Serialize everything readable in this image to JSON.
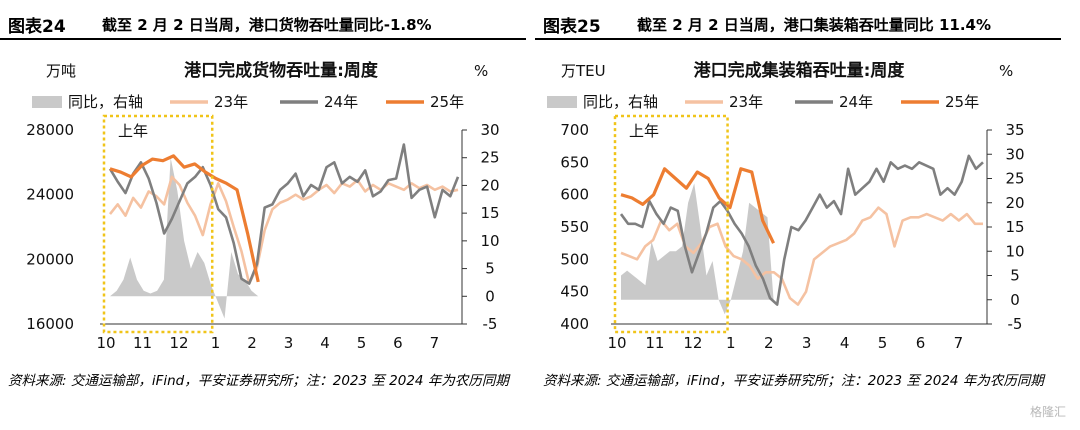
{
  "watermark": "格隆汇",
  "colors": {
    "ratio": "#c9c9c9",
    "y23": "#f5c2a2",
    "y24": "#7f7f7f",
    "y25": "#ed7d31",
    "box": "#f0c419"
  },
  "charts": [
    {
      "fig_no": "图表24",
      "fig_title": "截至 2 月 2 日当周，港口货物吞吐量同比-1.8%",
      "note": "资料来源: 交通运输部，iFind，平安证券研究所；注：2023 至 2024 年为农历同期",
      "chart_data": {
        "type": "line",
        "title": "港口完成货物吞吐量:周度",
        "left_unit": "万吨",
        "right_unit": "%",
        "left_ylim": [
          16000,
          28000
        ],
        "left_ticks": [
          "28000",
          "24000",
          "20000",
          "16000"
        ],
        "right_ylim": [
          -5,
          30
        ],
        "right_ticks": [
          "30",
          "25",
          "20",
          "15",
          "10",
          "5",
          "0",
          "-5"
        ],
        "x_tick_labels": [
          "10",
          "11",
          "12",
          "1",
          "2",
          "3",
          "4",
          "5",
          "6",
          "7"
        ],
        "box_label": "上年",
        "legend": [
          "同比，右轴",
          "23年",
          "24年",
          "25年"
        ],
        "series": [
          {
            "name": "同比，右轴",
            "type": "area",
            "axis": "right",
            "values": [
              0,
              1,
              3,
              7,
              3,
              1,
              0.5,
              1,
              3,
              25,
              19,
              10,
              5,
              8,
              6,
              2,
              -1,
              -4,
              8,
              4,
              3,
              1,
              0
            ]
          },
          {
            "name": "23年",
            "type": "line",
            "axis": "left",
            "values": [
              22800,
              23400,
              22700,
              23800,
              23200,
              24200,
              23900,
              23400,
              25100,
              24600,
              23500,
              22700,
              21500,
              23400,
              24700,
              23600,
              22000,
              20500,
              18500,
              19500,
              21800,
              23100,
              23500,
              23700,
              24000,
              23700,
              23900,
              24300,
              24600,
              24100,
              24700,
              24500,
              24900,
              24200,
              24600,
              24300,
              24700,
              24500,
              24300,
              24700,
              24400,
              24600,
              24300,
              24500,
              24200,
              24300
            ]
          },
          {
            "name": "24年",
            "type": "line",
            "axis": "left",
            "values": [
              25600,
              24800,
              24100,
              25300,
              26000,
              25000,
              23500,
              21600,
              22500,
              23600,
              24700,
              25100,
              25700,
              24600,
              23100,
              22600,
              21000,
              18800,
              18500,
              19700,
              23200,
              23400,
              24300,
              24700,
              25300,
              23900,
              24600,
              24300,
              25700,
              26000,
              24700,
              25100,
              24800,
              25500,
              23900,
              24200,
              24900,
              25000,
              27100,
              23800,
              24300,
              24500,
              22600,
              24300,
              23900,
              25100
            ]
          },
          {
            "name": "25年",
            "type": "line",
            "axis": "left",
            "values": [
              25600,
              25400,
              25100,
              25800,
              26200,
              26100,
              26400,
              25700,
              25900,
              25400,
              25000,
              24700,
              24300,
              21600,
              18600
            ]
          }
        ]
      }
    },
    {
      "fig_no": "图表25",
      "fig_title": "截至 2 月 2 日当周，港口集装箱吞吐量同比 11.4%",
      "note": "资料来源: 交通运输部，iFind，平安证券研究所；注：2023 至 2024 年为农历同期",
      "chart_data": {
        "type": "line",
        "title": "港口完成集装箱吞吐量:周度",
        "left_unit": "万TEU",
        "right_unit": "%",
        "left_ylim": [
          400,
          700
        ],
        "left_ticks": [
          "700",
          "650",
          "600",
          "550",
          "500",
          "450",
          "400"
        ],
        "right_ylim": [
          -5,
          35
        ],
        "right_ticks": [
          "35",
          "30",
          "25",
          "20",
          "15",
          "10",
          "5",
          "0",
          "-5"
        ],
        "x_tick_labels": [
          "10",
          "11",
          "12",
          "1",
          "2",
          "3",
          "4",
          "5",
          "6",
          "7"
        ],
        "box_label": "上年",
        "legend": [
          "同比，右轴",
          "23年",
          "24年",
          "25年"
        ],
        "series": [
          {
            "name": "同比，右轴",
            "type": "area",
            "axis": "right",
            "values": [
              5,
              6,
              5,
              4,
              3,
              12,
              8,
              9,
              10,
              10,
              11,
              20,
              24,
              15,
              5,
              8,
              0,
              -3,
              0,
              5,
              10,
              20,
              19,
              18,
              17,
              0
            ]
          },
          {
            "name": "23年",
            "type": "line",
            "axis": "left",
            "values": [
              510,
              505,
              500,
              520,
              530,
              560,
              545,
              555,
              520,
              510,
              525,
              550,
              555,
              520,
              505,
              500,
              490,
              470,
              480,
              480,
              470,
              440,
              430,
              450,
              500,
              510,
              520,
              525,
              530,
              540,
              560,
              565,
              580,
              570,
              520,
              560,
              565,
              565,
              570,
              565,
              560,
              570,
              560,
              570,
              555,
              555
            ]
          },
          {
            "name": "24年",
            "type": "line",
            "axis": "left",
            "values": [
              570,
              555,
              555,
              550,
              590,
              570,
              555,
              580,
              575,
              520,
              480,
              510,
              540,
              580,
              590,
              575,
              555,
              540,
              520,
              490,
              470,
              440,
              430,
              500,
              550,
              545,
              560,
              580,
              600,
              580,
              590,
              570,
              640,
              600,
              610,
              620,
              640,
              620,
              650,
              640,
              645,
              640,
              650,
              645,
              640,
              600,
              610,
              600,
              620,
              660,
              640,
              650
            ]
          },
          {
            "name": "25年",
            "type": "line",
            "axis": "left",
            "values": [
              600,
              595,
              585,
              600,
              640,
              625,
              610,
              635,
              625,
              595,
              580,
              640,
              635,
              560,
              525
            ]
          }
        ]
      }
    }
  ]
}
